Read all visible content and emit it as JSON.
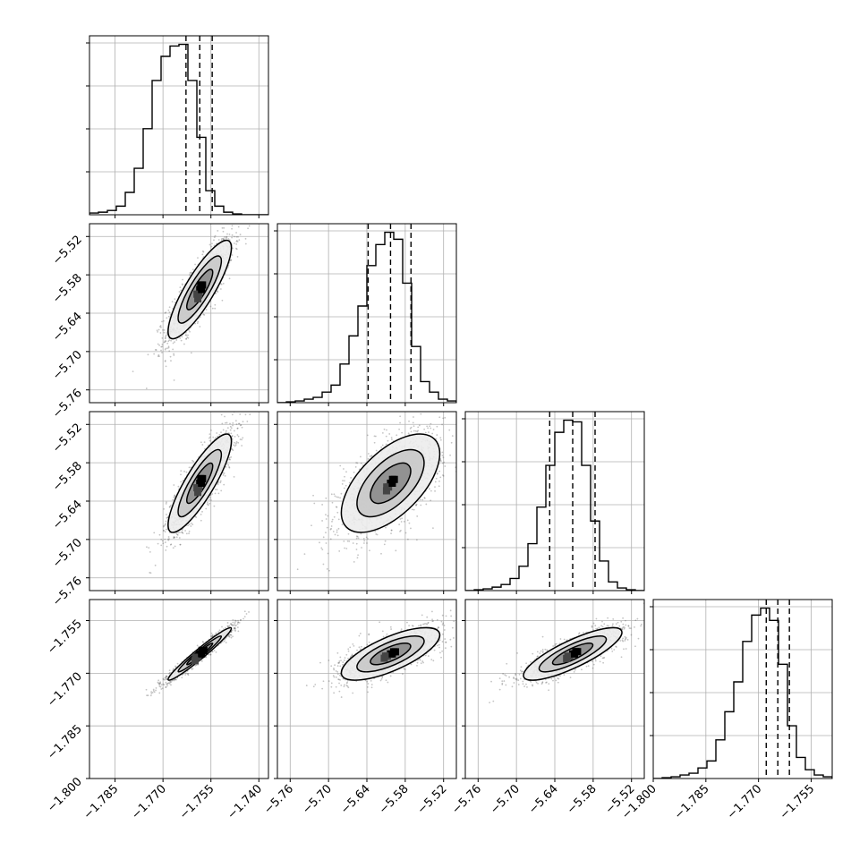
{
  "chart_data": {
    "type": "corner",
    "grid": true,
    "quantiles": [
      0.16,
      0.5,
      0.84
    ],
    "colors": {
      "ink": "#000000",
      "grid": "#b0b0b0",
      "scatter": "#555555",
      "fill_light": "#ececec",
      "fill_mid": "#c8c8c8",
      "fill_dark": "#8c8c8c"
    },
    "parameters": [
      {
        "mean": -1.7585,
        "sd": 0.0045,
        "range": [
          -1.793,
          -1.737
        ],
        "ticks": [
          -1.785,
          -1.77,
          -1.755,
          -1.74
        ],
        "tick_labels": [
          "−1.785",
          "−1.770",
          "−1.755",
          "−1.740"
        ],
        "quantile_values": [
          -1.7628,
          -1.7585,
          -1.7546
        ],
        "hist": [
          0.01,
          0.015,
          0.025,
          0.05,
          0.13,
          0.27,
          0.5,
          0.78,
          0.92,
          0.98,
          0.99,
          0.78,
          0.45,
          0.14,
          0.05,
          0.015,
          0.005,
          0.0,
          0.0,
          0.0
        ]
      },
      {
        "mean": -5.603,
        "sd": 0.035,
        "range": [
          -5.78,
          -5.5
        ],
        "ticks": [
          -5.76,
          -5.7,
          -5.64,
          -5.58,
          -5.52
        ],
        "tick_labels": [
          "−5.76",
          "−5.70",
          "−5.64",
          "−5.58",
          "−5.52"
        ],
        "quantile_values": [
          -5.638,
          -5.603,
          -5.571
        ],
        "hist": [
          0.0,
          0.005,
          0.01,
          0.02,
          0.03,
          0.06,
          0.1,
          0.22,
          0.38,
          0.55,
          0.78,
          0.9,
          0.97,
          0.93,
          0.68,
          0.32,
          0.12,
          0.06,
          0.02,
          0.01
        ]
      },
      {
        "mean": -5.612,
        "sd": 0.035,
        "range": [
          -5.78,
          -5.5
        ],
        "ticks": [
          -5.76,
          -5.7,
          -5.64,
          -5.58,
          -5.52
        ],
        "tick_labels": [
          "−5.76",
          "−5.70",
          "−5.64",
          "−5.58",
          "−5.52"
        ],
        "quantile_values": [
          -5.648,
          -5.612,
          -5.577
        ],
        "hist": [
          0.0,
          0.005,
          0.01,
          0.02,
          0.035,
          0.07,
          0.14,
          0.27,
          0.48,
          0.72,
          0.91,
          0.98,
          0.97,
          0.72,
          0.4,
          0.17,
          0.05,
          0.015,
          0.005,
          0.0
        ]
      },
      {
        "mean": -1.7645,
        "sd": 0.0034,
        "range": [
          -1.8,
          -1.749
        ],
        "ticks": [
          -1.8,
          -1.785,
          -1.77,
          -1.755
        ],
        "tick_labels": [
          "−1.800",
          "−1.785",
          "−1.770",
          "−1.755"
        ],
        "quantile_values": [
          -1.7678,
          -1.7645,
          -1.7612
        ],
        "hist": [
          0.0,
          0.005,
          0.01,
          0.02,
          0.03,
          0.06,
          0.1,
          0.22,
          0.38,
          0.55,
          0.78,
          0.93,
          0.97,
          0.9,
          0.65,
          0.3,
          0.12,
          0.05,
          0.02,
          0.01
        ]
      }
    ],
    "correlations": [
      [
        1,
        0.85,
        0.85,
        0.97
      ],
      [
        0.85,
        1,
        0.6,
        0.72
      ],
      [
        0.85,
        0.6,
        1,
        0.82
      ],
      [
        0.97,
        0.72,
        0.82,
        1
      ]
    ]
  }
}
